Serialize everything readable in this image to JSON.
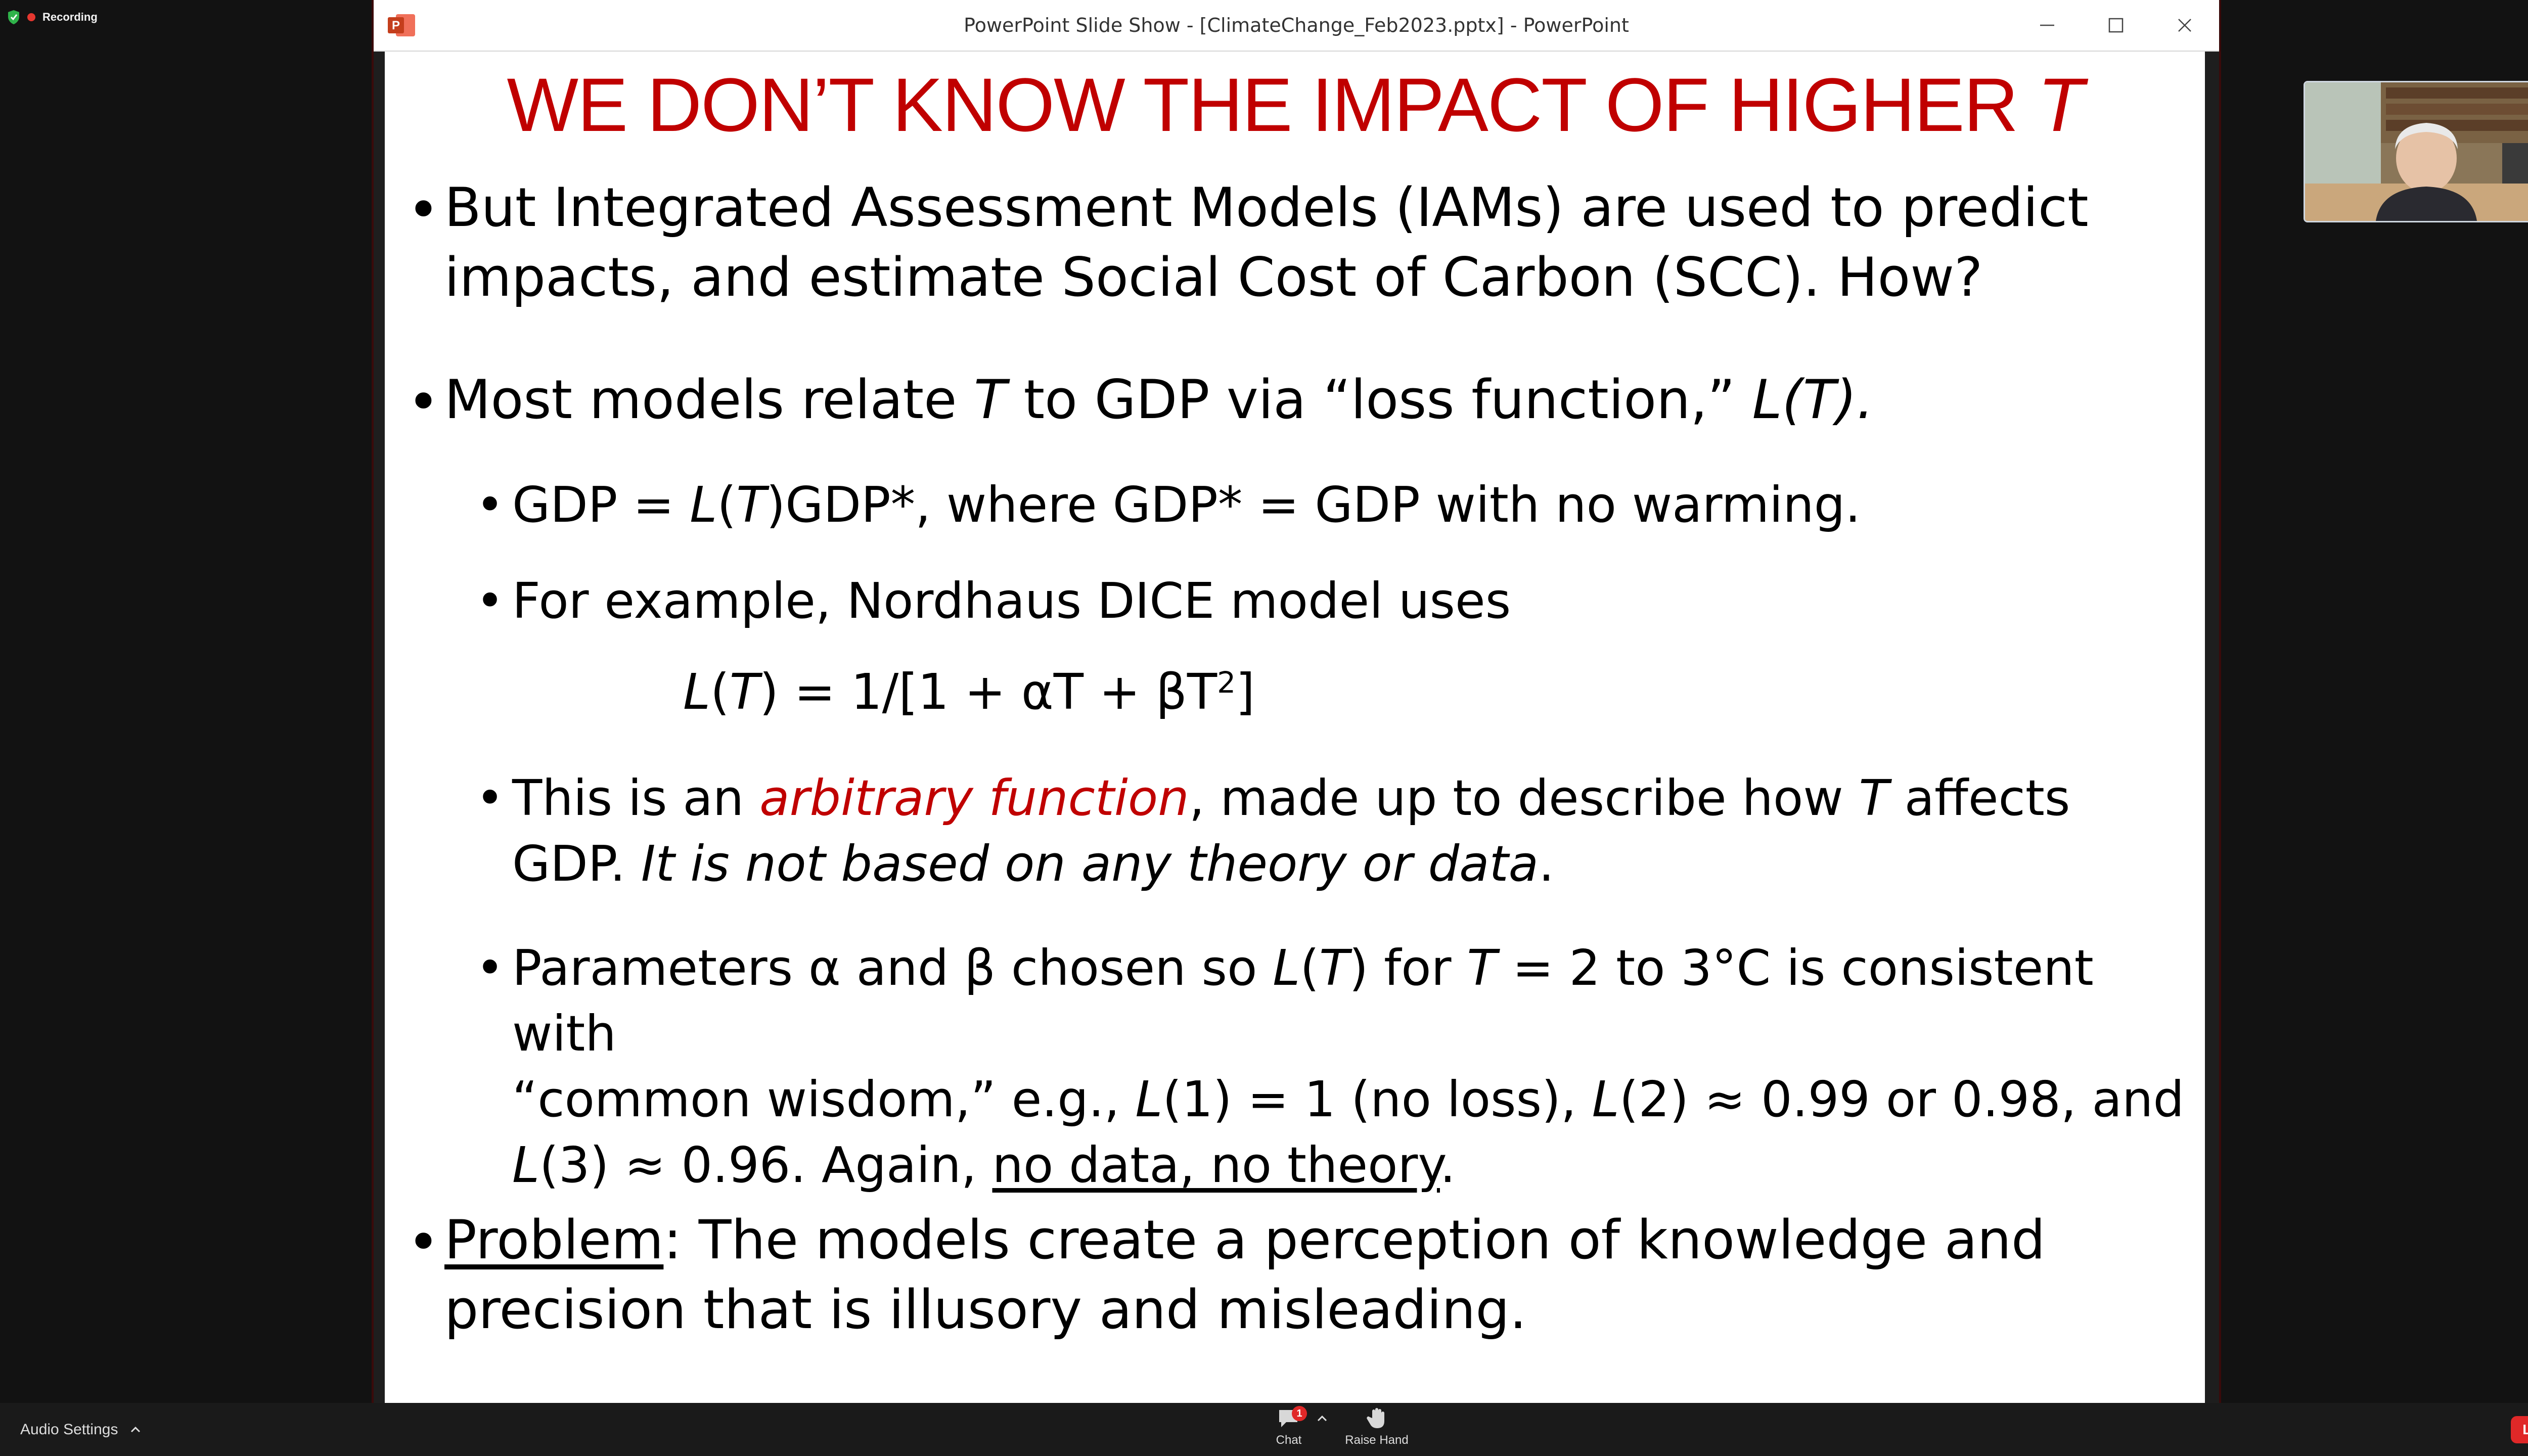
{
  "recording": {
    "label": "Recording"
  },
  "window": {
    "title": "PowerPoint Slide Show - [ClimateChange_Feb2023.pptx] - PowerPoint",
    "controls": [
      "minimize",
      "maximize",
      "close"
    ]
  },
  "slide": {
    "title": {
      "main": "WE DON’T KNOW THE IMPACT OF HIGHER ",
      "var": "T"
    },
    "b1": {
      "line1": "But Integrated Assessment Models (IAMs) are used to predict",
      "line2": "impacts, and estimate Social Cost of Carbon (SCC). How?"
    },
    "b2": {
      "a": "Most models relate ",
      "t": "T",
      "b": " to GDP via “loss function,” ",
      "c": "L(T)."
    },
    "s1": {
      "a": "GDP = ",
      "l": "L",
      "b": "(",
      "t": "T",
      "c": ")GDP*, where GDP* = GDP with no warming."
    },
    "s2": {
      "text": "For example, Nordhaus DICE model uses"
    },
    "formula": {
      "l": "L",
      "p1": "(",
      "t": "T",
      "p2": ") = 1/[1 + αT + βT",
      "exp": "2",
      "end": "]"
    },
    "s3": {
      "a": "This is an ",
      "red": "arbitrary function",
      "b": ", made up to describe how ",
      "t": "T",
      "c": " affects",
      "d": "GDP.  ",
      "e": "It is not based on any theory or data",
      "f": "."
    },
    "s4": {
      "a": "Parameters α and β chosen so ",
      "l1": "L",
      "b": "(",
      "t1": "T",
      "c": ") for ",
      "t2": "T",
      "d": " = 2 to 3°C is consistent with",
      "e": "“common wisdom,” e.g., ",
      "l2": "L",
      "f": "(1) = 1 (no loss), ",
      "l3": "L",
      "g": "(2) ≈ 0.99 or 0.98, and",
      "l4": "L",
      "h": "(3) ≈ 0.96.  Again, ",
      "u": "no data, no theory",
      "i": "."
    },
    "b3": {
      "u": "Problem",
      "a": ": The models create a perception of knowledge and",
      "line2": "precision that is illusory and misleading."
    },
    "bullet": "•"
  },
  "toolbar": {
    "audio_settings": "Audio Settings",
    "chat_label": "Chat",
    "chat_badge": "1",
    "raise_hand_label": "Raise Hand",
    "leave_label": "Leave"
  },
  "colors": {
    "accent_red": "#c00000",
    "leave_red": "#e02828",
    "badge_red": "#e02828"
  }
}
